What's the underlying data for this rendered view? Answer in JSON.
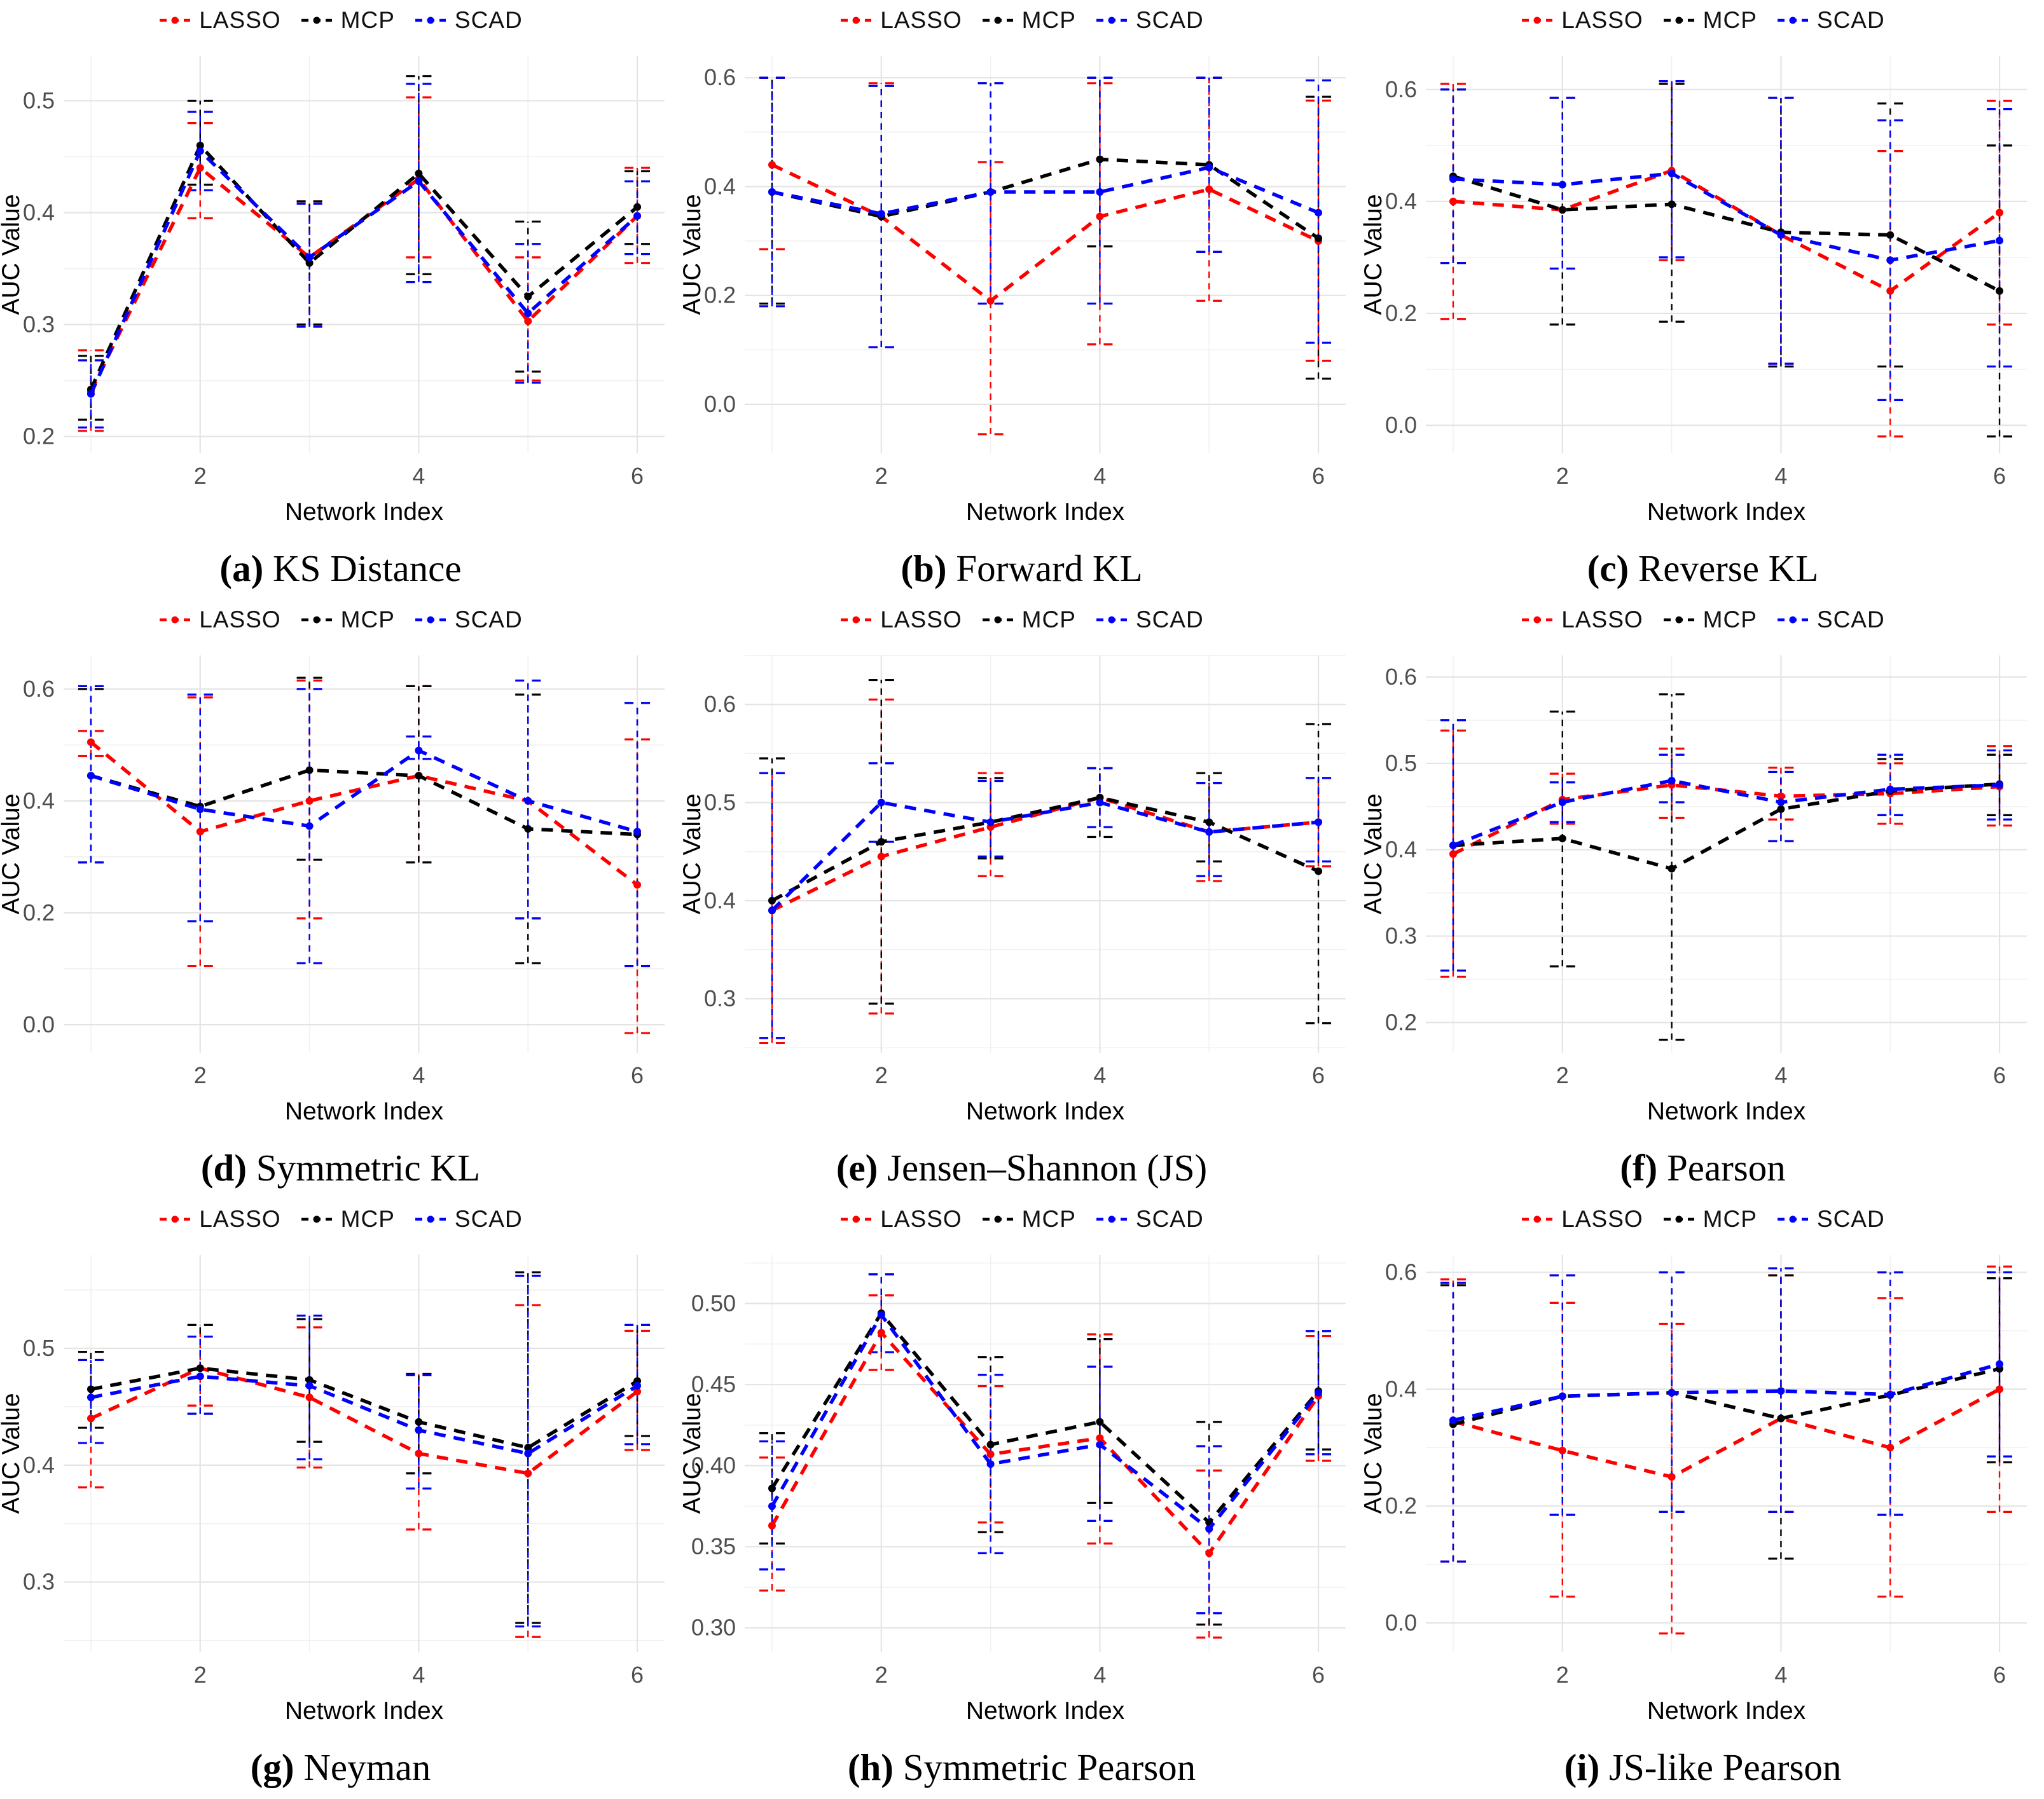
{
  "figure": {
    "background": "#ffffff"
  },
  "legend": {
    "items": [
      {
        "label": "LASSO",
        "color": "#FF0000"
      },
      {
        "label": "MCP",
        "color": "#000000"
      },
      {
        "label": "SCAD",
        "color": "#0000FF"
      }
    ]
  },
  "axes": {
    "x_label": "Network Index",
    "y_label": "AUC Value",
    "xlim": [
      0.75,
      6.25
    ],
    "x_ticks": [
      {
        "v": 2,
        "label": "2"
      },
      {
        "v": 4,
        "label": "4"
      },
      {
        "v": 6,
        "label": "6"
      }
    ],
    "x_minor": [
      1,
      3,
      5
    ],
    "tick_color": "#4d4d4d",
    "major_grid_color": "#e4e4e4",
    "minor_grid_color": "#f1f1f1"
  },
  "chart_data": [
    {
      "type": "line",
      "panel_label": "(a)",
      "title": "KS Distance",
      "x": [
        1,
        2,
        3,
        4,
        5,
        6
      ],
      "ylim": [
        0.185,
        0.54
      ],
      "yticks": [
        {
          "v": 0.2,
          "label": "0.2"
        },
        {
          "v": 0.3,
          "label": "0.3"
        },
        {
          "v": 0.4,
          "label": "0.4"
        },
        {
          "v": 0.5,
          "label": "0.5"
        }
      ],
      "series": [
        {
          "name": "LASSO",
          "color": "#FF0000",
          "values": [
            0.24,
            0.44,
            0.36,
            0.43,
            0.303,
            0.397
          ],
          "lower": [
            0.205,
            0.395,
            0.3,
            0.36,
            0.25,
            0.355
          ],
          "upper": [
            0.277,
            0.48,
            0.41,
            0.503,
            0.36,
            0.44
          ]
        },
        {
          "name": "MCP",
          "color": "#000000",
          "values": [
            0.242,
            0.46,
            0.355,
            0.435,
            0.325,
            0.405
          ],
          "lower": [
            0.215,
            0.425,
            0.3,
            0.345,
            0.258,
            0.372
          ],
          "upper": [
            0.272,
            0.5,
            0.41,
            0.522,
            0.392,
            0.437
          ]
        },
        {
          "name": "SCAD",
          "color": "#0000FF",
          "values": [
            0.238,
            0.455,
            0.36,
            0.428,
            0.31,
            0.397
          ],
          "lower": [
            0.208,
            0.42,
            0.298,
            0.338,
            0.248,
            0.363
          ],
          "upper": [
            0.268,
            0.49,
            0.408,
            0.515,
            0.372,
            0.428
          ]
        }
      ]
    },
    {
      "type": "line",
      "panel_label": "(b)",
      "title": "Forward KL",
      "x": [
        1,
        2,
        3,
        4,
        5,
        6
      ],
      "ylim": [
        -0.09,
        0.64
      ],
      "yticks": [
        {
          "v": 0.0,
          "label": "0.0"
        },
        {
          "v": 0.2,
          "label": "0.2"
        },
        {
          "v": 0.4,
          "label": "0.4"
        },
        {
          "v": 0.6,
          "label": "0.6"
        }
      ],
      "series": [
        {
          "name": "LASSO",
          "color": "#FF0000",
          "values": [
            0.44,
            0.345,
            0.19,
            0.345,
            0.395,
            0.3
          ],
          "lower": [
            0.285,
            0.105,
            -0.055,
            0.11,
            0.19,
            0.08
          ],
          "upper": [
            0.6,
            0.59,
            0.445,
            0.59,
            0.6,
            0.558
          ]
        },
        {
          "name": "MCP",
          "color": "#000000",
          "values": [
            0.39,
            0.345,
            0.39,
            0.45,
            0.44,
            0.305
          ],
          "lower": [
            0.185,
            0.105,
            0.185,
            0.29,
            0.28,
            0.047
          ],
          "upper": [
            0.6,
            0.585,
            0.59,
            0.6,
            0.6,
            0.565
          ]
        },
        {
          "name": "SCAD",
          "color": "#0000FF",
          "values": [
            0.39,
            0.35,
            0.39,
            0.39,
            0.435,
            0.352
          ],
          "lower": [
            0.18,
            0.105,
            0.185,
            0.185,
            0.28,
            0.113
          ],
          "upper": [
            0.6,
            0.585,
            0.59,
            0.6,
            0.6,
            0.595
          ]
        }
      ]
    },
    {
      "type": "line",
      "panel_label": "(c)",
      "title": "Reverse KL",
      "x": [
        1,
        2,
        3,
        4,
        5,
        6
      ],
      "ylim": [
        -0.05,
        0.66
      ],
      "yticks": [
        {
          "v": 0.0,
          "label": "0.0"
        },
        {
          "v": 0.2,
          "label": "0.2"
        },
        {
          "v": 0.4,
          "label": "0.4"
        },
        {
          "v": 0.6,
          "label": "0.6"
        }
      ],
      "series": [
        {
          "name": "LASSO",
          "color": "#FF0000",
          "values": [
            0.4,
            0.385,
            0.455,
            0.34,
            0.24,
            0.38
          ],
          "lower": [
            0.19,
            0.18,
            0.295,
            0.11,
            -0.02,
            0.18
          ],
          "upper": [
            0.61,
            0.585,
            0.615,
            0.585,
            0.49,
            0.58
          ]
        },
        {
          "name": "MCP",
          "color": "#000000",
          "values": [
            0.445,
            0.385,
            0.395,
            0.345,
            0.34,
            0.24
          ],
          "lower": [
            0.29,
            0.18,
            0.185,
            0.105,
            0.105,
            -0.02
          ],
          "upper": [
            0.6,
            0.585,
            0.61,
            0.585,
            0.575,
            0.5
          ]
        },
        {
          "name": "SCAD",
          "color": "#0000FF",
          "values": [
            0.44,
            0.43,
            0.45,
            0.34,
            0.295,
            0.33
          ],
          "lower": [
            0.29,
            0.28,
            0.3,
            0.11,
            0.045,
            0.105
          ],
          "upper": [
            0.6,
            0.585,
            0.615,
            0.585,
            0.545,
            0.565
          ]
        }
      ]
    },
    {
      "type": "line",
      "panel_label": "(d)",
      "title": "Symmetric KL",
      "x": [
        1,
        2,
        3,
        4,
        5,
        6
      ],
      "ylim": [
        -0.05,
        0.66
      ],
      "yticks": [
        {
          "v": 0.0,
          "label": "0.0"
        },
        {
          "v": 0.2,
          "label": "0.2"
        },
        {
          "v": 0.4,
          "label": "0.4"
        },
        {
          "v": 0.6,
          "label": "0.6"
        }
      ],
      "series": [
        {
          "name": "LASSO",
          "color": "#FF0000",
          "values": [
            0.505,
            0.345,
            0.4,
            0.445,
            0.4,
            0.25
          ],
          "lower": [
            0.48,
            0.105,
            0.19,
            0.29,
            0.19,
            -0.015
          ],
          "upper": [
            0.525,
            0.585,
            0.615,
            0.605,
            0.59,
            0.51
          ]
        },
        {
          "name": "MCP",
          "color": "#000000",
          "values": [
            0.445,
            0.39,
            0.455,
            0.445,
            0.35,
            0.34
          ],
          "lower": [
            0.29,
            0.185,
            0.295,
            0.29,
            0.11,
            0.105
          ],
          "upper": [
            0.6,
            0.59,
            0.62,
            0.605,
            0.59,
            0.575
          ]
        },
        {
          "name": "SCAD",
          "color": "#0000FF",
          "values": [
            0.445,
            0.385,
            0.355,
            0.49,
            0.4,
            0.345
          ],
          "lower": [
            0.29,
            0.185,
            0.11,
            0.475,
            0.19,
            0.105
          ],
          "upper": [
            0.605,
            0.59,
            0.6,
            0.515,
            0.615,
            0.575
          ]
        }
      ]
    },
    {
      "type": "line",
      "panel_label": "(e)",
      "title": "Jensen–Shannon (JS)",
      "x": [
        1,
        2,
        3,
        4,
        5,
        6
      ],
      "ylim": [
        0.245,
        0.65
      ],
      "yticks": [
        {
          "v": 0.3,
          "label": "0.3"
        },
        {
          "v": 0.4,
          "label": "0.4"
        },
        {
          "v": 0.5,
          "label": "0.5"
        },
        {
          "v": 0.6,
          "label": "0.6"
        }
      ],
      "series": [
        {
          "name": "LASSO",
          "color": "#FF0000",
          "values": [
            0.39,
            0.445,
            0.475,
            0.505,
            0.47,
            0.48
          ],
          "lower": [
            0.255,
            0.285,
            0.425,
            0.475,
            0.42,
            0.435
          ],
          "upper": [
            0.53,
            0.605,
            0.53,
            0.535,
            0.52,
            0.525
          ]
        },
        {
          "name": "MCP",
          "color": "#000000",
          "values": [
            0.4,
            0.46,
            0.48,
            0.505,
            0.48,
            0.43
          ],
          "lower": [
            0.26,
            0.295,
            0.443,
            0.465,
            0.44,
            0.275
          ],
          "upper": [
            0.545,
            0.625,
            0.525,
            0.535,
            0.53,
            0.58
          ]
        },
        {
          "name": "SCAD",
          "color": "#0000FF",
          "values": [
            0.39,
            0.5,
            0.48,
            0.5,
            0.47,
            0.48
          ],
          "lower": [
            0.26,
            0.46,
            0.445,
            0.475,
            0.425,
            0.44
          ],
          "upper": [
            0.53,
            0.54,
            0.522,
            0.535,
            0.52,
            0.525
          ]
        }
      ]
    },
    {
      "type": "line",
      "panel_label": "(f)",
      "title": "Pearson",
      "x": [
        1,
        2,
        3,
        4,
        5,
        6
      ],
      "ylim": [
        0.165,
        0.625
      ],
      "yticks": [
        {
          "v": 0.2,
          "label": "0.2"
        },
        {
          "v": 0.3,
          "label": "0.3"
        },
        {
          "v": 0.4,
          "label": "0.4"
        },
        {
          "v": 0.5,
          "label": "0.5"
        },
        {
          "v": 0.6,
          "label": "0.6"
        }
      ],
      "series": [
        {
          "name": "LASSO",
          "color": "#FF0000",
          "values": [
            0.395,
            0.458,
            0.475,
            0.462,
            0.465,
            0.473
          ],
          "lower": [
            0.253,
            0.43,
            0.437,
            0.435,
            0.43,
            0.428
          ],
          "upper": [
            0.538,
            0.488,
            0.517,
            0.495,
            0.5,
            0.52
          ]
        },
        {
          "name": "MCP",
          "color": "#000000",
          "values": [
            0.405,
            0.413,
            0.378,
            0.447,
            0.468,
            0.476
          ],
          "lower": [
            0.26,
            0.265,
            0.18,
            0.41,
            0.44,
            0.44
          ],
          "upper": [
            0.55,
            0.56,
            0.58,
            0.49,
            0.505,
            0.51
          ]
        },
        {
          "name": "SCAD",
          "color": "#0000FF",
          "values": [
            0.405,
            0.455,
            0.48,
            0.455,
            0.47,
            0.475
          ],
          "lower": [
            0.26,
            0.432,
            0.455,
            0.41,
            0.44,
            0.435
          ],
          "upper": [
            0.55,
            0.478,
            0.51,
            0.49,
            0.51,
            0.515
          ]
        }
      ]
    },
    {
      "type": "line",
      "panel_label": "(g)",
      "title": "Neyman",
      "x": [
        1,
        2,
        3,
        4,
        5,
        6
      ],
      "ylim": [
        0.24,
        0.58
      ],
      "yticks": [
        {
          "v": 0.3,
          "label": "0.3"
        },
        {
          "v": 0.4,
          "label": "0.4"
        },
        {
          "v": 0.5,
          "label": "0.5"
        }
      ],
      "series": [
        {
          "name": "LASSO",
          "color": "#FF0000",
          "values": [
            0.44,
            0.483,
            0.458,
            0.41,
            0.393,
            0.463
          ],
          "lower": [
            0.381,
            0.451,
            0.398,
            0.345,
            0.253,
            0.413
          ],
          "upper": [
            0.49,
            0.52,
            0.518,
            0.478,
            0.537,
            0.515
          ]
        },
        {
          "name": "MCP",
          "color": "#000000",
          "values": [
            0.465,
            0.483,
            0.473,
            0.437,
            0.415,
            0.472
          ],
          "lower": [
            0.432,
            0.444,
            0.42,
            0.393,
            0.265,
            0.425
          ],
          "upper": [
            0.497,
            0.52,
            0.525,
            0.478,
            0.565,
            0.52
          ]
        },
        {
          "name": "SCAD",
          "color": "#0000FF",
          "values": [
            0.458,
            0.476,
            0.468,
            0.43,
            0.41,
            0.468
          ],
          "lower": [
            0.419,
            0.444,
            0.405,
            0.38,
            0.262,
            0.418
          ],
          "upper": [
            0.49,
            0.51,
            0.528,
            0.477,
            0.562,
            0.52
          ]
        }
      ]
    },
    {
      "type": "line",
      "panel_label": "(h)",
      "title": "Symmetric Pearson",
      "x": [
        1,
        2,
        3,
        4,
        5,
        6
      ],
      "ylim": [
        0.285,
        0.53
      ],
      "yticks": [
        {
          "v": 0.3,
          "label": "0.30"
        },
        {
          "v": 0.35,
          "label": "0.35"
        },
        {
          "v": 0.4,
          "label": "0.40"
        },
        {
          "v": 0.45,
          "label": "0.45"
        },
        {
          "v": 0.5,
          "label": "0.50"
        }
      ],
      "series": [
        {
          "name": "LASSO",
          "color": "#FF0000",
          "values": [
            0.363,
            0.482,
            0.407,
            0.417,
            0.346,
            0.443
          ],
          "lower": [
            0.323,
            0.459,
            0.365,
            0.352,
            0.294,
            0.403
          ],
          "upper": [
            0.405,
            0.505,
            0.449,
            0.481,
            0.397,
            0.48
          ]
        },
        {
          "name": "MCP",
          "color": "#000000",
          "values": [
            0.386,
            0.494,
            0.413,
            0.427,
            0.365,
            0.446
          ],
          "lower": [
            0.352,
            0.47,
            0.359,
            0.377,
            0.302,
            0.41
          ],
          "upper": [
            0.42,
            0.518,
            0.467,
            0.478,
            0.427,
            0.483
          ]
        },
        {
          "name": "SCAD",
          "color": "#0000FF",
          "values": [
            0.375,
            0.493,
            0.401,
            0.413,
            0.361,
            0.445
          ],
          "lower": [
            0.336,
            0.47,
            0.346,
            0.366,
            0.309,
            0.407
          ],
          "upper": [
            0.415,
            0.518,
            0.456,
            0.461,
            0.412,
            0.483
          ]
        }
      ]
    },
    {
      "type": "line",
      "panel_label": "(i)",
      "title": "JS-like Pearson",
      "x": [
        1,
        2,
        3,
        4,
        5,
        6
      ],
      "ylim": [
        -0.05,
        0.63
      ],
      "yticks": [
        {
          "v": 0.0,
          "label": "0.0"
        },
        {
          "v": 0.2,
          "label": "0.2"
        },
        {
          "v": 0.4,
          "label": "0.4"
        },
        {
          "v": 0.6,
          "label": "0.6"
        }
      ],
      "series": [
        {
          "name": "LASSO",
          "color": "#FF0000",
          "values": [
            0.345,
            0.295,
            0.25,
            0.35,
            0.3,
            0.4
          ],
          "lower": [
            0.105,
            0.045,
            -0.018,
            0.19,
            0.045,
            0.19
          ],
          "upper": [
            0.588,
            0.548,
            0.512,
            0.595,
            0.556,
            0.61
          ]
        },
        {
          "name": "MCP",
          "color": "#000000",
          "values": [
            0.34,
            0.388,
            0.394,
            0.35,
            0.39,
            0.435
          ],
          "lower": [
            0.105,
            0.185,
            0.19,
            0.11,
            0.185,
            0.275
          ],
          "upper": [
            0.578,
            0.595,
            0.6,
            0.595,
            0.6,
            0.59
          ]
        },
        {
          "name": "SCAD",
          "color": "#0000FF",
          "values": [
            0.347,
            0.388,
            0.394,
            0.397,
            0.391,
            0.443
          ],
          "lower": [
            0.105,
            0.185,
            0.19,
            0.19,
            0.185,
            0.285
          ],
          "upper": [
            0.582,
            0.595,
            0.6,
            0.607,
            0.6,
            0.6
          ]
        }
      ]
    }
  ]
}
